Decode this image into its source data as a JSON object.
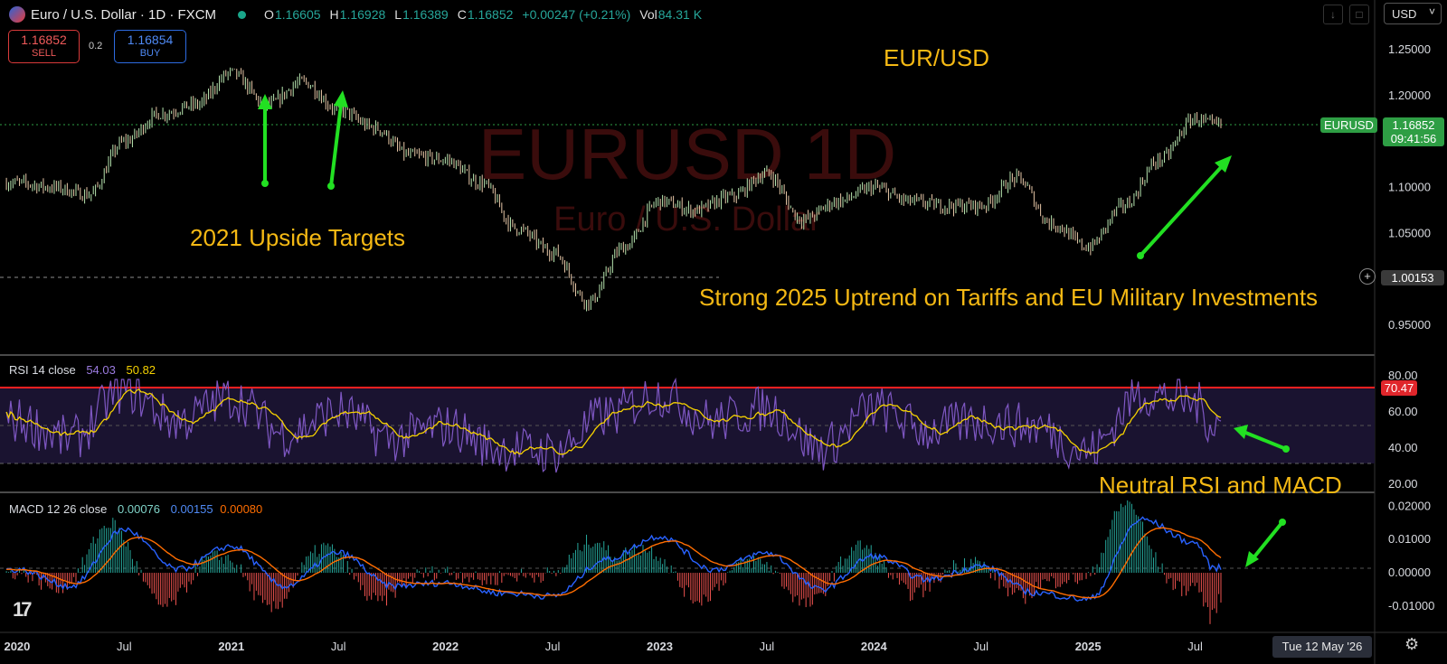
{
  "header": {
    "symbol": "Euro / U.S. Dollar · 1D · FXCM",
    "open_label": "O",
    "open": "1.16605",
    "high_label": "H",
    "high": "1.16928",
    "low_label": "L",
    "low": "1.16389",
    "close_label": "C",
    "close": "1.16852",
    "change": "+0.00247 (+0.21%)",
    "vol_label": "Vol",
    "vol": "84.31 K"
  },
  "trade": {
    "sell_price": "1.16852",
    "sell_label": "SELL",
    "buy_price": "1.16854",
    "buy_label": "BUY",
    "spread": "0.2"
  },
  "currency_button": "USD",
  "watermark": {
    "symbol": "EURUSD 1D",
    "name": "Euro / U.S. Dollar"
  },
  "annotations": {
    "title": "EUR/USD",
    "targets": "2021 Upside Targets",
    "uptrend": "Strong 2025 Uptrend on Tariffs and EU Military Investments",
    "neutral": "Neutral RSI and MACD"
  },
  "price_tag": {
    "symbol": "EURUSD",
    "price": "1.16852",
    "countdown": "09:41:56"
  },
  "crosshair_price": "1.00153",
  "rsi": {
    "legend": "RSI 14 close",
    "value": "54.03",
    "ma_value": "50.82",
    "current_tag": "70.47"
  },
  "macd": {
    "legend": "MACD 12 26 close",
    "hist": "0.00076",
    "macd": "0.00155",
    "signal": "0.00080"
  },
  "date_box": "Tue 12 May '26",
  "colors": {
    "up": "#26a69a",
    "down": "#ef5350",
    "annotation": "#f5b914",
    "arrow": "#22e022",
    "rsi": "#7e57c2",
    "rsi_ma": "#f5d100",
    "macd": "#2962ff",
    "signal": "#ff6d00",
    "price_tag": "#2e9e44"
  },
  "chart_data": [
    {
      "type": "line",
      "title": "EUR/USD",
      "series": [
        {
          "name": "EURUSD",
          "x": [
            "2020-01",
            "2020-03",
            "2020-05",
            "2020-07",
            "2020-09",
            "2020-11",
            "2021-01",
            "2021-03",
            "2021-05",
            "2021-07",
            "2021-09",
            "2021-11",
            "2022-01",
            "2022-03",
            "2022-05",
            "2022-07",
            "2022-09",
            "2022-11",
            "2023-01",
            "2023-03",
            "2023-05",
            "2023-07",
            "2023-09",
            "2023-11",
            "2024-01",
            "2024-03",
            "2024-05",
            "2024-07",
            "2024-09",
            "2024-11",
            "2025-01",
            "2025-03",
            "2025-05",
            "2025-07",
            "2025-08"
          ],
          "values": [
            1.105,
            1.1,
            1.092,
            1.15,
            1.18,
            1.19,
            1.225,
            1.19,
            1.215,
            1.185,
            1.165,
            1.135,
            1.13,
            1.105,
            1.055,
            1.03,
            0.975,
            1.035,
            1.085,
            1.075,
            1.09,
            1.115,
            1.065,
            1.085,
            1.1,
            1.085,
            1.08,
            1.08,
            1.11,
            1.06,
            1.035,
            1.08,
            1.13,
            1.175,
            1.1685
          ]
        }
      ],
      "yaxis_ticks": [
        "1.25000",
        "1.20000",
        "1.15000",
        "1.10000",
        "1.05000",
        "1.00000",
        "0.95000"
      ],
      "ylim": [
        0.94,
        1.265
      ],
      "xaxis_ticks": [
        "2020",
        "Jul",
        "2021",
        "Jul",
        "2022",
        "Jul",
        "2023",
        "Jul",
        "2024",
        "Jul",
        "2025",
        "Jul"
      ],
      "reference_line": 1.00153,
      "legend": "none"
    },
    {
      "type": "line",
      "title": "RSI 14 close",
      "series": [
        {
          "name": "RSI",
          "x": [
            "2020-01",
            "2020-04",
            "2020-07",
            "2020-10",
            "2021-01",
            "2021-04",
            "2021-07",
            "2021-10",
            "2022-01",
            "2022-04",
            "2022-07",
            "2022-10",
            "2023-01",
            "2023-04",
            "2023-07",
            "2023-10",
            "2024-01",
            "2024-04",
            "2024-07",
            "2024-10",
            "2025-01",
            "2025-04",
            "2025-07",
            "2025-08"
          ],
          "values": [
            55,
            45,
            72,
            55,
            68,
            48,
            60,
            45,
            52,
            40,
            38,
            58,
            70,
            55,
            62,
            40,
            62,
            50,
            55,
            52,
            38,
            70,
            65,
            54
          ]
        }
      ],
      "yaxis_ticks": [
        "80.00",
        "60.00",
        "40.00",
        "20.00"
      ],
      "ylim": [
        18,
        88
      ],
      "bands": [
        70,
        30
      ]
    },
    {
      "type": "line",
      "title": "MACD 12 26 close",
      "series": [
        {
          "name": "MACD",
          "x": [
            "2020-01",
            "2020-04",
            "2020-07",
            "2020-10",
            "2021-01",
            "2021-04",
            "2021-07",
            "2021-10",
            "2022-01",
            "2022-04",
            "2022-07",
            "2022-10",
            "2023-01",
            "2023-04",
            "2023-07",
            "2023-10",
            "2024-01",
            "2024-04",
            "2024-07",
            "2024-10",
            "2025-01",
            "2025-04",
            "2025-07",
            "2025-08"
          ],
          "values": [
            0.001,
            -0.004,
            0.013,
            0.001,
            0.008,
            -0.004,
            0.006,
            -0.004,
            -0.003,
            -0.006,
            -0.007,
            0.004,
            0.011,
            0.001,
            0.006,
            -0.005,
            0.005,
            -0.002,
            0.002,
            -0.006,
            -0.008,
            0.016,
            0.009,
            0.0015
          ]
        }
      ],
      "yaxis_ticks": [
        "0.02000",
        "0.01000",
        "0.00000",
        "-0.01000"
      ],
      "ylim": [
        -0.016,
        0.022
      ]
    }
  ]
}
